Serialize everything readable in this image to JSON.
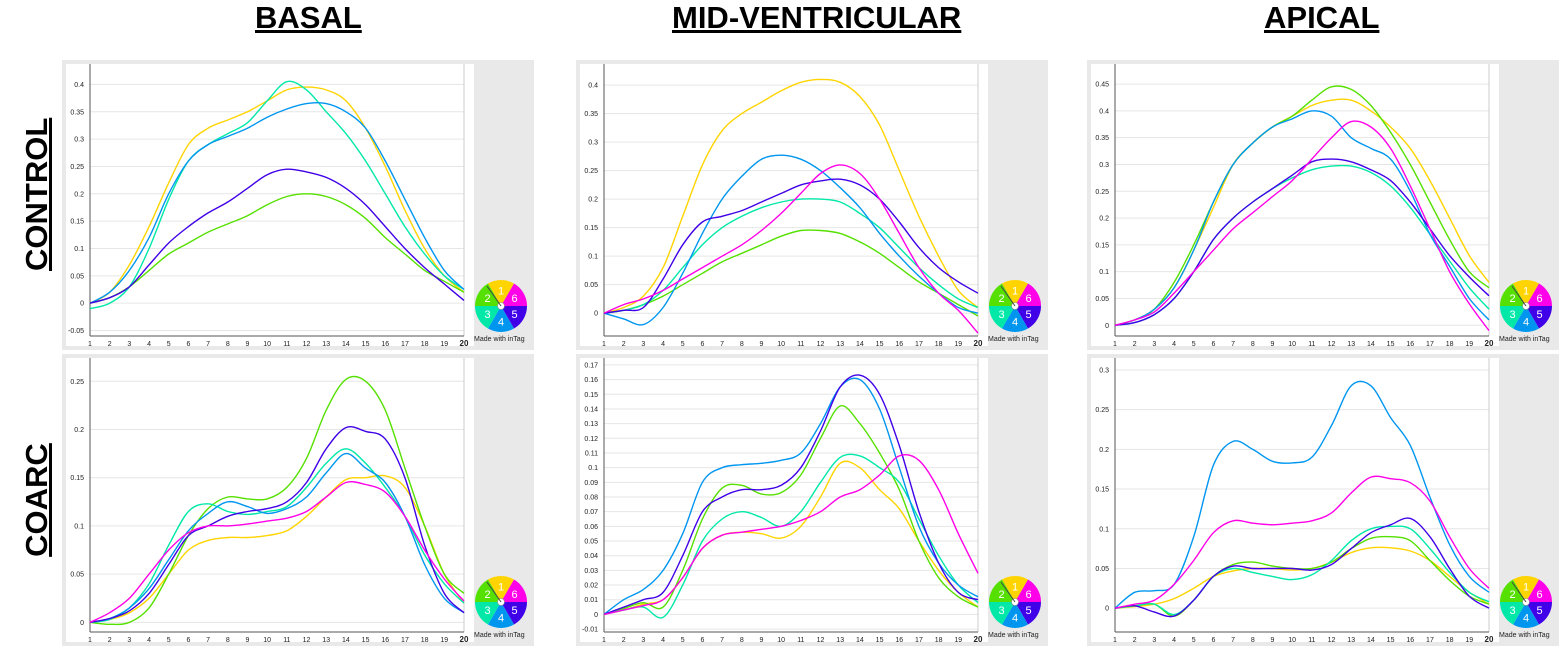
{
  "columns": [
    "BASAL",
    "MID-VENTRICULAR",
    "APICAL"
  ],
  "rows": [
    "CONTROL",
    "COARC"
  ],
  "watermark": "Made with inTag",
  "wheel_segments": [
    "1",
    "2",
    "3",
    "4",
    "5",
    "6"
  ],
  "series_colors": {
    "s1": "#ffd400",
    "s2": "#55e000",
    "s3": "#00e8a8",
    "s4": "#0096f0",
    "s5": "#4000e8",
    "s6": "#ff00e8"
  },
  "chart_data": [
    {
      "type": "line",
      "row": "CONTROL",
      "column": "BASAL",
      "x": [
        1,
        2,
        3,
        4,
        5,
        6,
        7,
        8,
        9,
        10,
        11,
        12,
        13,
        14,
        15,
        16,
        17,
        18,
        19,
        20
      ],
      "ylim": [
        -0.06,
        0.43
      ],
      "yticks": [
        -0.05,
        0,
        0.05,
        0.1,
        0.15,
        0.2,
        0.25,
        0.3,
        0.35,
        0.4
      ],
      "series": [
        {
          "color": "#ffd400",
          "values": [
            0,
            0.02,
            0.07,
            0.14,
            0.22,
            0.29,
            0.32,
            0.335,
            0.35,
            0.37,
            0.39,
            0.395,
            0.39,
            0.37,
            0.32,
            0.25,
            0.17,
            0.1,
            0.05,
            0.02
          ]
        },
        {
          "color": "#55e000",
          "values": [
            0,
            0.01,
            0.03,
            0.06,
            0.09,
            0.11,
            0.13,
            0.145,
            0.16,
            0.18,
            0.195,
            0.2,
            0.195,
            0.18,
            0.155,
            0.12,
            0.09,
            0.06,
            0.04,
            0.02
          ]
        },
        {
          "color": "#00e8a8",
          "values": [
            -0.01,
            0,
            0.03,
            0.1,
            0.19,
            0.26,
            0.29,
            0.31,
            0.33,
            0.37,
            0.405,
            0.39,
            0.35,
            0.31,
            0.26,
            0.2,
            0.14,
            0.09,
            0.05,
            0.025
          ]
        },
        {
          "color": "#0096f0",
          "values": [
            0,
            0.02,
            0.06,
            0.12,
            0.2,
            0.26,
            0.29,
            0.305,
            0.32,
            0.34,
            0.355,
            0.365,
            0.365,
            0.35,
            0.32,
            0.26,
            0.19,
            0.12,
            0.06,
            0.025
          ]
        },
        {
          "color": "#4000e8",
          "values": [
            0,
            0.01,
            0.03,
            0.07,
            0.11,
            0.14,
            0.165,
            0.185,
            0.21,
            0.235,
            0.245,
            0.24,
            0.23,
            0.21,
            0.18,
            0.14,
            0.1,
            0.065,
            0.035,
            0.005
          ]
        }
      ]
    },
    {
      "type": "line",
      "row": "CONTROL",
      "column": "MID-VENTRICULAR",
      "x": [
        1,
        2,
        3,
        4,
        5,
        6,
        7,
        8,
        9,
        10,
        11,
        12,
        13,
        14,
        15,
        16,
        17,
        18,
        19,
        20
      ],
      "ylim": [
        -0.04,
        0.43
      ],
      "yticks": [
        0,
        0.05,
        0.1,
        0.15,
        0.2,
        0.25,
        0.3,
        0.35,
        0.4
      ],
      "series": [
        {
          "color": "#ffd400",
          "values": [
            0,
            0.01,
            0.03,
            0.08,
            0.17,
            0.26,
            0.32,
            0.35,
            0.37,
            0.39,
            0.405,
            0.41,
            0.405,
            0.38,
            0.33,
            0.25,
            0.17,
            0.1,
            0.04,
            0.01
          ]
        },
        {
          "color": "#55e000",
          "values": [
            0,
            0.005,
            0.015,
            0.03,
            0.05,
            0.07,
            0.09,
            0.105,
            0.12,
            0.135,
            0.145,
            0.145,
            0.14,
            0.125,
            0.105,
            0.08,
            0.055,
            0.035,
            0.015,
            -0.005
          ]
        },
        {
          "color": "#00e8a8",
          "values": [
            0,
            0.005,
            0.015,
            0.04,
            0.08,
            0.12,
            0.15,
            0.17,
            0.185,
            0.195,
            0.2,
            0.2,
            0.195,
            0.175,
            0.15,
            0.115,
            0.08,
            0.05,
            0.025,
            0.01
          ]
        },
        {
          "color": "#0096f0",
          "values": [
            0,
            -0.01,
            -0.02,
            0.01,
            0.07,
            0.14,
            0.2,
            0.24,
            0.27,
            0.277,
            0.27,
            0.25,
            0.22,
            0.185,
            0.14,
            0.1,
            0.065,
            0.035,
            0.01,
            0
          ]
        },
        {
          "color": "#4000e8",
          "values": [
            0,
            0.005,
            0.01,
            0.06,
            0.12,
            0.16,
            0.17,
            0.18,
            0.195,
            0.21,
            0.225,
            0.232,
            0.235,
            0.225,
            0.2,
            0.16,
            0.115,
            0.08,
            0.055,
            0.035
          ]
        },
        {
          "color": "#ff00e8",
          "values": [
            0,
            0.015,
            0.025,
            0.04,
            0.06,
            0.08,
            0.1,
            0.12,
            0.145,
            0.175,
            0.21,
            0.245,
            0.26,
            0.245,
            0.2,
            0.14,
            0.08,
            0.035,
            0.005,
            -0.035
          ]
        }
      ]
    },
    {
      "type": "line",
      "row": "CONTROL",
      "column": "APICAL",
      "x": [
        1,
        2,
        3,
        4,
        5,
        6,
        7,
        8,
        9,
        10,
        11,
        12,
        13,
        14,
        15,
        16,
        17,
        18,
        19,
        20
      ],
      "ylim": [
        -0.02,
        0.48
      ],
      "yticks": [
        0,
        0.05,
        0.1,
        0.15,
        0.2,
        0.25,
        0.3,
        0.35,
        0.4,
        0.45
      ],
      "series": [
        {
          "color": "#ffd400",
          "values": [
            0,
            0.01,
            0.03,
            0.07,
            0.14,
            0.22,
            0.3,
            0.34,
            0.37,
            0.39,
            0.41,
            0.42,
            0.42,
            0.4,
            0.37,
            0.33,
            0.27,
            0.2,
            0.13,
            0.08
          ]
        },
        {
          "color": "#55e000",
          "values": [
            0,
            0.01,
            0.03,
            0.08,
            0.15,
            0.23,
            0.3,
            0.34,
            0.37,
            0.39,
            0.42,
            0.445,
            0.44,
            0.41,
            0.36,
            0.3,
            0.23,
            0.16,
            0.1,
            0.07
          ]
        },
        {
          "color": "#00e8a8",
          "values": [
            0,
            0.005,
            0.02,
            0.05,
            0.1,
            0.16,
            0.2,
            0.23,
            0.255,
            0.275,
            0.29,
            0.297,
            0.297,
            0.285,
            0.26,
            0.22,
            0.17,
            0.12,
            0.07,
            0.03
          ]
        },
        {
          "color": "#0096f0",
          "values": [
            0,
            0.01,
            0.03,
            0.07,
            0.14,
            0.23,
            0.3,
            0.34,
            0.37,
            0.385,
            0.4,
            0.39,
            0.35,
            0.33,
            0.31,
            0.25,
            0.17,
            0.11,
            0.05,
            0.01
          ]
        },
        {
          "color": "#4000e8",
          "values": [
            0,
            0.005,
            0.02,
            0.05,
            0.1,
            0.16,
            0.2,
            0.23,
            0.255,
            0.28,
            0.305,
            0.31,
            0.305,
            0.29,
            0.27,
            0.23,
            0.18,
            0.13,
            0.09,
            0.055
          ]
        },
        {
          "color": "#ff00e8",
          "values": [
            0,
            0.01,
            0.025,
            0.06,
            0.1,
            0.14,
            0.18,
            0.21,
            0.24,
            0.27,
            0.31,
            0.35,
            0.38,
            0.37,
            0.33,
            0.26,
            0.18,
            0.1,
            0.04,
            -0.01
          ]
        }
      ]
    },
    {
      "type": "line",
      "row": "COARC",
      "column": "BASAL",
      "x": [
        1,
        2,
        3,
        4,
        5,
        6,
        7,
        8,
        9,
        10,
        11,
        12,
        13,
        14,
        15,
        16,
        17,
        18,
        19,
        20
      ],
      "ylim": [
        -0.01,
        0.27
      ],
      "yticks": [
        0,
        0.05,
        0.1,
        0.15,
        0.2,
        0.25
      ],
      "series": [
        {
          "color": "#ffd400",
          "values": [
            0,
            0.003,
            0.01,
            0.025,
            0.05,
            0.075,
            0.085,
            0.088,
            0.088,
            0.09,
            0.095,
            0.11,
            0.13,
            0.148,
            0.15,
            0.152,
            0.14,
            0.1,
            0.05,
            0.02
          ]
        },
        {
          "color": "#55e000",
          "values": [
            0,
            -0.002,
            0,
            0.015,
            0.05,
            0.09,
            0.118,
            0.13,
            0.128,
            0.128,
            0.14,
            0.17,
            0.22,
            0.252,
            0.25,
            0.22,
            0.16,
            0.1,
            0.05,
            0.03
          ]
        },
        {
          "color": "#00e8a8",
          "values": [
            0,
            0.003,
            0.015,
            0.04,
            0.08,
            0.115,
            0.123,
            0.115,
            0.112,
            0.115,
            0.12,
            0.14,
            0.165,
            0.18,
            0.165,
            0.14,
            0.11,
            0.07,
            0.04,
            0.02
          ]
        },
        {
          "color": "#0096f0",
          "values": [
            0,
            0.004,
            0.015,
            0.035,
            0.065,
            0.095,
            0.113,
            0.125,
            0.12,
            0.113,
            0.118,
            0.13,
            0.155,
            0.175,
            0.16,
            0.145,
            0.11,
            0.06,
            0.025,
            0.01
          ]
        },
        {
          "color": "#4000e8",
          "values": [
            0,
            0.004,
            0.012,
            0.03,
            0.06,
            0.09,
            0.1,
            0.11,
            0.115,
            0.118,
            0.125,
            0.145,
            0.18,
            0.202,
            0.198,
            0.19,
            0.15,
            0.08,
            0.03,
            0.01
          ]
        },
        {
          "color": "#ff00e8",
          "values": [
            0,
            0.01,
            0.025,
            0.05,
            0.075,
            0.093,
            0.1,
            0.1,
            0.102,
            0.105,
            0.108,
            0.115,
            0.13,
            0.145,
            0.143,
            0.135,
            0.11,
            0.075,
            0.045,
            0.022
          ]
        }
      ]
    },
    {
      "type": "line",
      "row": "COARC",
      "column": "MID-VENTRICULAR",
      "x": [
        1,
        2,
        3,
        4,
        5,
        6,
        7,
        8,
        9,
        10,
        11,
        12,
        13,
        14,
        15,
        16,
        17,
        18,
        19,
        20
      ],
      "ylim": [
        -0.012,
        0.172
      ],
      "yticks": [
        -0.01,
        0,
        0.01,
        0.02,
        0.03,
        0.04,
        0.05,
        0.06,
        0.07,
        0.08,
        0.09,
        0.1,
        0.11,
        0.12,
        0.13,
        0.14,
        0.15,
        0.16,
        0.17
      ],
      "series": [
        {
          "color": "#ffd400",
          "values": [
            0,
            0.003,
            0.007,
            0.01,
            0.025,
            0.045,
            0.054,
            0.056,
            0.055,
            0.052,
            0.06,
            0.08,
            0.103,
            0.1,
            0.085,
            0.072,
            0.05,
            0.03,
            0.015,
            0.005
          ]
        },
        {
          "color": "#55e000",
          "values": [
            0,
            0.004,
            0.008,
            0.005,
            0.03,
            0.065,
            0.086,
            0.088,
            0.082,
            0.083,
            0.095,
            0.12,
            0.142,
            0.13,
            0.11,
            0.085,
            0.05,
            0.025,
            0.012,
            0.005
          ]
        },
        {
          "color": "#00e8a8",
          "values": [
            0,
            0.003,
            0.005,
            -0.002,
            0.02,
            0.05,
            0.065,
            0.07,
            0.066,
            0.06,
            0.07,
            0.09,
            0.107,
            0.108,
            0.1,
            0.09,
            0.065,
            0.04,
            0.02,
            0.008
          ]
        },
        {
          "color": "#0096f0",
          "values": [
            0,
            0.01,
            0.017,
            0.03,
            0.055,
            0.09,
            0.1,
            0.102,
            0.103,
            0.105,
            0.11,
            0.13,
            0.155,
            0.16,
            0.14,
            0.1,
            0.06,
            0.035,
            0.02,
            0.012
          ]
        },
        {
          "color": "#4000e8",
          "values": [
            0,
            0.005,
            0.01,
            0.015,
            0.04,
            0.07,
            0.08,
            0.085,
            0.085,
            0.088,
            0.1,
            0.125,
            0.155,
            0.163,
            0.15,
            0.115,
            0.07,
            0.035,
            0.015,
            0.01
          ]
        },
        {
          "color": "#ff00e8",
          "values": [
            0,
            0.003,
            0.006,
            0.01,
            0.025,
            0.045,
            0.054,
            0.056,
            0.058,
            0.06,
            0.064,
            0.07,
            0.08,
            0.085,
            0.095,
            0.108,
            0.105,
            0.085,
            0.055,
            0.028
          ]
        }
      ]
    },
    {
      "type": "line",
      "row": "COARC",
      "column": "APICAL",
      "x": [
        1,
        2,
        3,
        4,
        5,
        6,
        7,
        8,
        9,
        10,
        11,
        12,
        13,
        14,
        15,
        16,
        17,
        18,
        19,
        20
      ],
      "ylim": [
        -0.03,
        0.31
      ],
      "yticks": [
        0,
        0.05,
        0.1,
        0.15,
        0.2,
        0.25,
        0.3
      ],
      "series": [
        {
          "color": "#ffd400",
          "values": [
            0,
            0.002,
            0.005,
            0.012,
            0.025,
            0.04,
            0.047,
            0.05,
            0.05,
            0.048,
            0.05,
            0.058,
            0.07,
            0.076,
            0.076,
            0.072,
            0.06,
            0.04,
            0.02,
            0.005
          ]
        },
        {
          "color": "#55e000",
          "values": [
            0,
            0.003,
            0.005,
            -0.01,
            0.01,
            0.04,
            0.055,
            0.058,
            0.053,
            0.05,
            0.05,
            0.058,
            0.075,
            0.088,
            0.09,
            0.085,
            0.06,
            0.035,
            0.015,
            0.005
          ]
        },
        {
          "color": "#00e8a8",
          "values": [
            0,
            0.003,
            0.005,
            -0.008,
            0.01,
            0.04,
            0.05,
            0.045,
            0.04,
            0.036,
            0.042,
            0.06,
            0.085,
            0.1,
            0.103,
            0.1,
            0.075,
            0.045,
            0.02,
            0.008
          ]
        },
        {
          "color": "#0096f0",
          "values": [
            0,
            0.02,
            0.022,
            0.03,
            0.09,
            0.18,
            0.21,
            0.2,
            0.185,
            0.183,
            0.19,
            0.23,
            0.28,
            0.28,
            0.24,
            0.205,
            0.14,
            0.08,
            0.04,
            0.02
          ]
        },
        {
          "color": "#4000e8",
          "values": [
            0,
            0.003,
            -0.005,
            -0.01,
            0.01,
            0.04,
            0.053,
            0.05,
            0.05,
            0.05,
            0.048,
            0.055,
            0.075,
            0.095,
            0.105,
            0.113,
            0.09,
            0.05,
            0.015,
            0
          ]
        },
        {
          "color": "#ff00e8",
          "values": [
            0,
            0.005,
            0.01,
            0.03,
            0.06,
            0.095,
            0.11,
            0.107,
            0.105,
            0.107,
            0.11,
            0.12,
            0.145,
            0.165,
            0.163,
            0.158,
            0.135,
            0.09,
            0.05,
            0.025
          ]
        }
      ]
    }
  ]
}
